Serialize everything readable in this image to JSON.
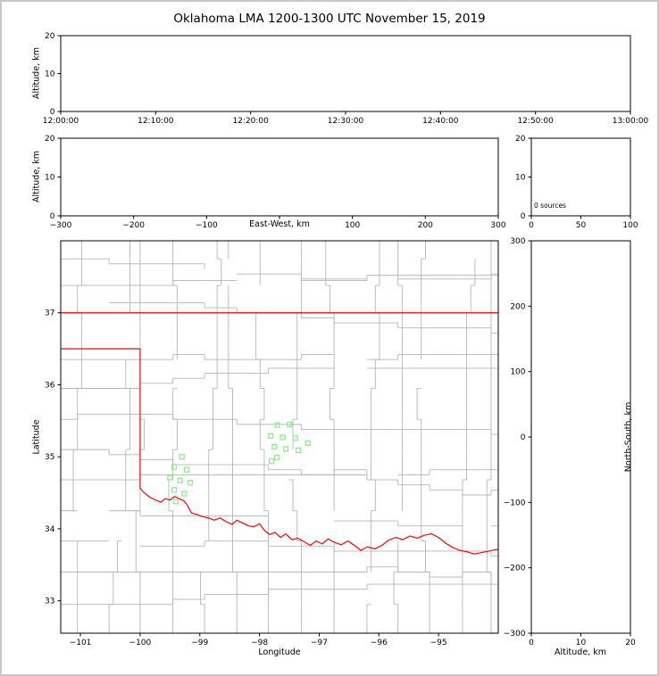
{
  "title": "Oklahoma LMA 1200-1300 UTC November 15, 2019",
  "colors": {
    "axis": "#000000",
    "county_line": "#b5b5b5",
    "state_border": "#ff0000",
    "station_marker": "#90ee90",
    "frame": "#c8c8c8"
  },
  "chart_data": [
    {
      "id": "time-height",
      "type": "scatter",
      "xlabel": "",
      "ylabel": "Altitude, km",
      "xlim": [
        0,
        3600
      ],
      "xticks": [
        0,
        600,
        1200,
        1800,
        2400,
        3000,
        3600
      ],
      "xtick_labels": [
        "12:00:00",
        "12:10:00",
        "12:20:00",
        "12:30:00",
        "12:40:00",
        "12:50:00",
        "13:00:00"
      ],
      "ylim": [
        0,
        20
      ],
      "yticks": [
        0,
        10,
        20
      ],
      "ytick_labels": [
        "0",
        "10",
        "20"
      ],
      "points": []
    },
    {
      "id": "ew-height",
      "type": "scatter",
      "xlabel": "East-West, km",
      "ylabel": "Altitude, km",
      "xlim": [
        -300,
        300
      ],
      "xticks": [
        -300,
        -200,
        -100,
        0,
        100,
        200,
        300
      ],
      "xtick_labels": [
        "−300",
        "−200",
        "−100",
        "",
        "100",
        "200",
        "300"
      ],
      "ylim": [
        0,
        20
      ],
      "yticks": [
        0,
        10,
        20
      ],
      "ytick_labels": [
        "0",
        "10",
        "20"
      ],
      "points": []
    },
    {
      "id": "source-histogram",
      "type": "line",
      "annotation": "0 sources",
      "xlim": [
        0,
        100
      ],
      "xticks": [
        0,
        50,
        100
      ],
      "xtick_labels": [
        "0",
        "50",
        "100"
      ],
      "ylim": [
        0,
        20
      ],
      "yticks": [
        0,
        10,
        20
      ],
      "ytick_labels": [
        "0",
        "10",
        "20"
      ],
      "points": []
    },
    {
      "id": "plan-view",
      "type": "scatter",
      "xlabel": "Longitude",
      "ylabel": "Latitude",
      "xlim": [
        -101.33,
        -94.0
      ],
      "xticks": [
        -101,
        -100,
        -99,
        -98,
        -97,
        -96,
        -95
      ],
      "xtick_labels": [
        "−101",
        "−100",
        "−99",
        "−98",
        "−97",
        "−96",
        "−95"
      ],
      "ylim": [
        32.55,
        38.0
      ],
      "yticks": [
        33,
        34,
        35,
        36,
        37
      ],
      "ytick_labels": [
        "33",
        "34",
        "35",
        "36",
        "37"
      ],
      "stations": [
        [
          -99.3,
          35.0
        ],
        [
          -99.43,
          34.86
        ],
        [
          -99.22,
          34.82
        ],
        [
          -99.5,
          34.71
        ],
        [
          -99.33,
          34.67
        ],
        [
          -99.16,
          34.64
        ],
        [
          -99.43,
          34.54
        ],
        [
          -99.26,
          34.49
        ],
        [
          -99.4,
          34.38
        ],
        [
          -97.7,
          35.44
        ],
        [
          -97.5,
          35.45
        ],
        [
          -97.81,
          35.29
        ],
        [
          -97.61,
          35.27
        ],
        [
          -97.4,
          35.26
        ],
        [
          -97.19,
          35.19
        ],
        [
          -97.75,
          35.14
        ],
        [
          -97.56,
          35.11
        ],
        [
          -97.35,
          35.09
        ],
        [
          -97.71,
          34.99
        ],
        [
          -97.8,
          34.94
        ]
      ]
    },
    {
      "id": "ns-height",
      "type": "scatter",
      "xlabel": "Altitude, km",
      "ylabel": "North-South, km",
      "xlim": [
        0,
        20
      ],
      "xticks": [
        0,
        10,
        20
      ],
      "xtick_labels": [
        "0",
        "10",
        "20"
      ],
      "ylim": [
        -300,
        300
      ],
      "yticks": [
        300,
        200,
        100,
        0,
        -100,
        -200,
        -300
      ],
      "ytick_labels": [
        "300",
        "200",
        "100",
        "0",
        "−100",
        "−200",
        "−300"
      ],
      "points": []
    }
  ],
  "map": {
    "state_border": {
      "north_border_lat": 37.0,
      "panhandle_south_lat": 36.5,
      "panhandle_east_lon": -100.0,
      "southwest_corner_lat": 34.56,
      "red_river": [
        [
          -100.0,
          34.56
        ],
        [
          -99.93,
          34.5
        ],
        [
          -99.84,
          34.44
        ],
        [
          -99.74,
          34.4
        ],
        [
          -99.65,
          34.37
        ],
        [
          -99.58,
          34.42
        ],
        [
          -99.5,
          34.4
        ],
        [
          -99.42,
          34.45
        ],
        [
          -99.35,
          34.42
        ],
        [
          -99.27,
          34.39
        ],
        [
          -99.21,
          34.33
        ],
        [
          -99.14,
          34.22
        ],
        [
          -99.05,
          34.2
        ],
        [
          -98.96,
          34.17
        ],
        [
          -98.86,
          34.15
        ],
        [
          -98.76,
          34.12
        ],
        [
          -98.66,
          34.15
        ],
        [
          -98.56,
          34.1
        ],
        [
          -98.46,
          34.06
        ],
        [
          -98.38,
          34.12
        ],
        [
          -98.28,
          34.08
        ],
        [
          -98.18,
          34.04
        ],
        [
          -98.09,
          34.03
        ],
        [
          -98.0,
          34.07
        ],
        [
          -97.92,
          33.98
        ],
        [
          -97.83,
          33.92
        ],
        [
          -97.74,
          33.95
        ],
        [
          -97.65,
          33.88
        ],
        [
          -97.56,
          33.93
        ],
        [
          -97.46,
          33.85
        ],
        [
          -97.36,
          33.87
        ],
        [
          -97.25,
          33.82
        ],
        [
          -97.15,
          33.77
        ],
        [
          -97.05,
          33.83
        ],
        [
          -96.95,
          33.79
        ],
        [
          -96.85,
          33.86
        ],
        [
          -96.74,
          33.81
        ],
        [
          -96.63,
          33.78
        ],
        [
          -96.52,
          33.83
        ],
        [
          -96.41,
          33.77
        ],
        [
          -96.3,
          33.7
        ],
        [
          -96.19,
          33.75
        ],
        [
          -96.07,
          33.72
        ],
        [
          -95.95,
          33.77
        ],
        [
          -95.84,
          33.84
        ],
        [
          -95.72,
          33.88
        ],
        [
          -95.6,
          33.85
        ],
        [
          -95.48,
          33.9
        ],
        [
          -95.36,
          33.87
        ],
        [
          -95.24,
          33.91
        ],
        [
          -95.12,
          33.93
        ],
        [
          -95.0,
          33.88
        ],
        [
          -94.88,
          33.8
        ],
        [
          -94.76,
          33.74
        ],
        [
          -94.64,
          33.7
        ],
        [
          -94.52,
          33.68
        ],
        [
          -94.4,
          33.65
        ],
        [
          -94.28,
          33.67
        ],
        [
          -94.16,
          33.69
        ],
        [
          -94.04,
          33.71
        ],
        [
          -93.98,
          33.72
        ]
      ]
    },
    "counties": {
      "col_lons": [
        -101.05,
        -100.52,
        -100.0,
        -99.45,
        -98.92,
        -98.38,
        -97.85,
        -97.3,
        -96.75,
        -96.2,
        -95.68,
        -95.15,
        -94.6,
        -94.12
      ],
      "row_lats": [
        32.95,
        33.4,
        33.83,
        34.25,
        34.68,
        35.1,
        35.52,
        35.95,
        36.35,
        37.0,
        37.38,
        37.75
      ],
      "jitter": 0.07,
      "skip_prob": 0.08,
      "seed": 20191115
    }
  }
}
